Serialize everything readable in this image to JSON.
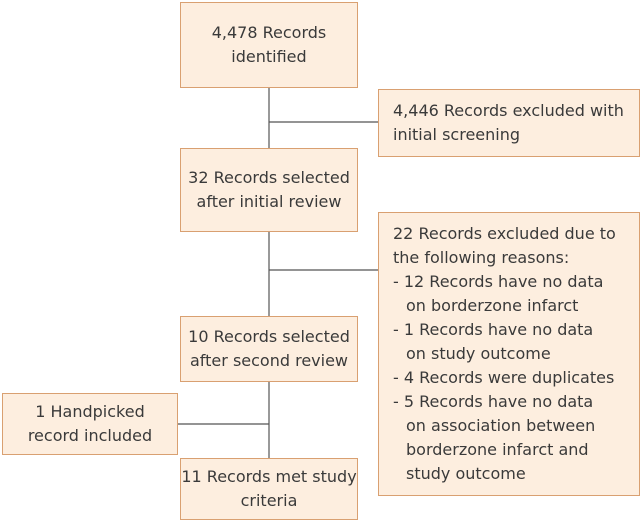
{
  "nodes": [
    {
      "lines": [
        "4,478 Records",
        "identified"
      ]
    },
    {
      "lines": [
        "4,446 Records excluded with",
        "initial screening"
      ]
    },
    {
      "lines": [
        "32 Records selected",
        "after initial review"
      ]
    },
    {
      "lines": [
        "22 Records excluded due to",
        "the following reasons:"
      ],
      "items": [
        [
          "- 12 Records have no data",
          "on borderzone infarct"
        ],
        [
          "- 1 Records have no data",
          "on study outcome"
        ],
        [
          "- 4 Records were duplicates"
        ],
        [
          "- 5 Records have no data",
          "on association between",
          "borderzone infarct and",
          "study outcome"
        ]
      ]
    },
    {
      "lines": [
        "10 Records selected",
        "after second review"
      ]
    },
    {
      "lines": [
        "1 Handpicked",
        "record included"
      ]
    },
    {
      "lines": [
        "11 Records met study",
        "criteria"
      ]
    }
  ]
}
